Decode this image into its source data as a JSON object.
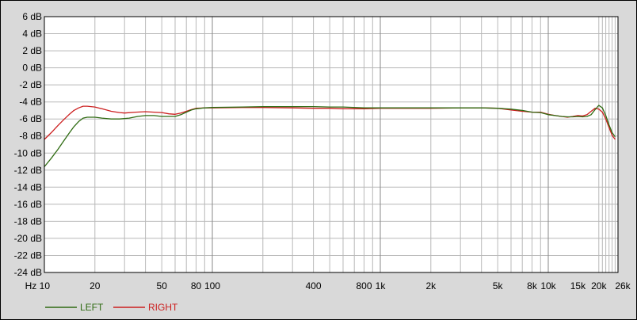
{
  "chart_data": {
    "type": "line",
    "title": "",
    "xlabel": "",
    "ylabel": "",
    "x_scale": "log",
    "xlim": [
      10,
      26000
    ],
    "ylim": [
      -24,
      6
    ],
    "grid": true,
    "legend_position": "bottom-left",
    "y_ticks": [
      {
        "value": 6,
        "label": "6 dB"
      },
      {
        "value": 4,
        "label": "4 dB"
      },
      {
        "value": 2,
        "label": "2 dB"
      },
      {
        "value": 0,
        "label": "0 dB"
      },
      {
        "value": -2,
        "label": "-2 dB"
      },
      {
        "value": -4,
        "label": "-4 dB"
      },
      {
        "value": -6,
        "label": "-6 dB"
      },
      {
        "value": -8,
        "label": "-8 dB"
      },
      {
        "value": -10,
        "label": "-10 dB"
      },
      {
        "value": -12,
        "label": "-12 dB"
      },
      {
        "value": -14,
        "label": "-14 dB"
      },
      {
        "value": -16,
        "label": "-16 dB"
      },
      {
        "value": -18,
        "label": "-18 dB"
      },
      {
        "value": -20,
        "label": "-20 dB"
      },
      {
        "value": -22,
        "label": "-22 dB"
      },
      {
        "value": -24,
        "label": "-24 dB"
      }
    ],
    "x_ticks": [
      {
        "value": 10,
        "label": "Hz 10"
      },
      {
        "value": 20,
        "label": "20"
      },
      {
        "value": 50,
        "label": "50"
      },
      {
        "value": 80,
        "label": "80"
      },
      {
        "value": 100,
        "label": "100"
      },
      {
        "value": 400,
        "label": "400"
      },
      {
        "value": 800,
        "label": "800"
      },
      {
        "value": 1000,
        "label": "1k"
      },
      {
        "value": 2000,
        "label": "2k"
      },
      {
        "value": 5000,
        "label": "5k"
      },
      {
        "value": 8000,
        "label": "8k"
      },
      {
        "value": 10000,
        "label": "10k"
      },
      {
        "value": 15000,
        "label": "15k"
      },
      {
        "value": 20000,
        "label": "20k"
      },
      {
        "value": 26000,
        "label": "26k"
      }
    ],
    "series": [
      {
        "name": "LEFT",
        "color": "#2f6b12",
        "points": [
          [
            10,
            -11.6
          ],
          [
            11,
            -10.6
          ],
          [
            12,
            -9.6
          ],
          [
            13,
            -8.6
          ],
          [
            14,
            -7.7
          ],
          [
            15,
            -6.9
          ],
          [
            16,
            -6.3
          ],
          [
            17,
            -5.9
          ],
          [
            18,
            -5.8
          ],
          [
            20,
            -5.8
          ],
          [
            22,
            -5.9
          ],
          [
            25,
            -6.0
          ],
          [
            28,
            -6.0
          ],
          [
            32,
            -5.9
          ],
          [
            36,
            -5.7
          ],
          [
            40,
            -5.6
          ],
          [
            45,
            -5.6
          ],
          [
            50,
            -5.7
          ],
          [
            55,
            -5.7
          ],
          [
            60,
            -5.7
          ],
          [
            65,
            -5.5
          ],
          [
            70,
            -5.2
          ],
          [
            75,
            -4.95
          ],
          [
            80,
            -4.8
          ],
          [
            90,
            -4.7
          ],
          [
            100,
            -4.65
          ],
          [
            150,
            -4.6
          ],
          [
            200,
            -4.55
          ],
          [
            300,
            -4.55
          ],
          [
            400,
            -4.55
          ],
          [
            500,
            -4.6
          ],
          [
            600,
            -4.6
          ],
          [
            800,
            -4.7
          ],
          [
            1000,
            -4.7
          ],
          [
            1500,
            -4.7
          ],
          [
            2000,
            -4.7
          ],
          [
            3000,
            -4.7
          ],
          [
            4000,
            -4.7
          ],
          [
            5000,
            -4.75
          ],
          [
            6000,
            -4.85
          ],
          [
            7000,
            -5.0
          ],
          [
            8000,
            -5.2
          ],
          [
            9000,
            -5.25
          ],
          [
            10000,
            -5.5
          ],
          [
            11000,
            -5.6
          ],
          [
            12000,
            -5.7
          ],
          [
            13000,
            -5.75
          ],
          [
            14000,
            -5.75
          ],
          [
            15000,
            -5.7
          ],
          [
            16000,
            -5.75
          ],
          [
            17000,
            -5.7
          ],
          [
            18000,
            -5.5
          ],
          [
            19000,
            -4.9
          ],
          [
            20000,
            -4.4
          ],
          [
            21000,
            -4.7
          ],
          [
            22000,
            -5.6
          ],
          [
            23000,
            -6.7
          ],
          [
            24000,
            -7.6
          ],
          [
            25000,
            -8.1
          ]
        ]
      },
      {
        "name": "RIGHT",
        "color": "#cc1f1f",
        "points": [
          [
            10,
            -8.4
          ],
          [
            11,
            -7.6
          ],
          [
            12,
            -6.8
          ],
          [
            13,
            -6.1
          ],
          [
            14,
            -5.5
          ],
          [
            15,
            -5.0
          ],
          [
            16,
            -4.7
          ],
          [
            17,
            -4.5
          ],
          [
            18,
            -4.5
          ],
          [
            20,
            -4.6
          ],
          [
            22,
            -4.8
          ],
          [
            25,
            -5.1
          ],
          [
            28,
            -5.25
          ],
          [
            30,
            -5.3
          ],
          [
            35,
            -5.2
          ],
          [
            40,
            -5.15
          ],
          [
            45,
            -5.2
          ],
          [
            50,
            -5.25
          ],
          [
            55,
            -5.4
          ],
          [
            60,
            -5.45
          ],
          [
            65,
            -5.3
          ],
          [
            70,
            -5.1
          ],
          [
            75,
            -4.9
          ],
          [
            80,
            -4.75
          ],
          [
            90,
            -4.7
          ],
          [
            100,
            -4.7
          ],
          [
            150,
            -4.65
          ],
          [
            200,
            -4.65
          ],
          [
            300,
            -4.7
          ],
          [
            400,
            -4.75
          ],
          [
            500,
            -4.75
          ],
          [
            600,
            -4.8
          ],
          [
            800,
            -4.8
          ],
          [
            1000,
            -4.75
          ],
          [
            1500,
            -4.75
          ],
          [
            2000,
            -4.75
          ],
          [
            3000,
            -4.7
          ],
          [
            4000,
            -4.7
          ],
          [
            5000,
            -4.75
          ],
          [
            6000,
            -4.95
          ],
          [
            7000,
            -5.1
          ],
          [
            8000,
            -5.2
          ],
          [
            9000,
            -5.2
          ],
          [
            10000,
            -5.45
          ],
          [
            11000,
            -5.6
          ],
          [
            12000,
            -5.7
          ],
          [
            13000,
            -5.8
          ],
          [
            14000,
            -5.7
          ],
          [
            15000,
            -5.6
          ],
          [
            16000,
            -5.65
          ],
          [
            17000,
            -5.5
          ],
          [
            18000,
            -5.1
          ],
          [
            19000,
            -4.75
          ],
          [
            20000,
            -4.85
          ],
          [
            21000,
            -5.2
          ],
          [
            22000,
            -6.0
          ],
          [
            23000,
            -7.0
          ],
          [
            24000,
            -7.9
          ],
          [
            25000,
            -8.4
          ]
        ]
      }
    ]
  }
}
